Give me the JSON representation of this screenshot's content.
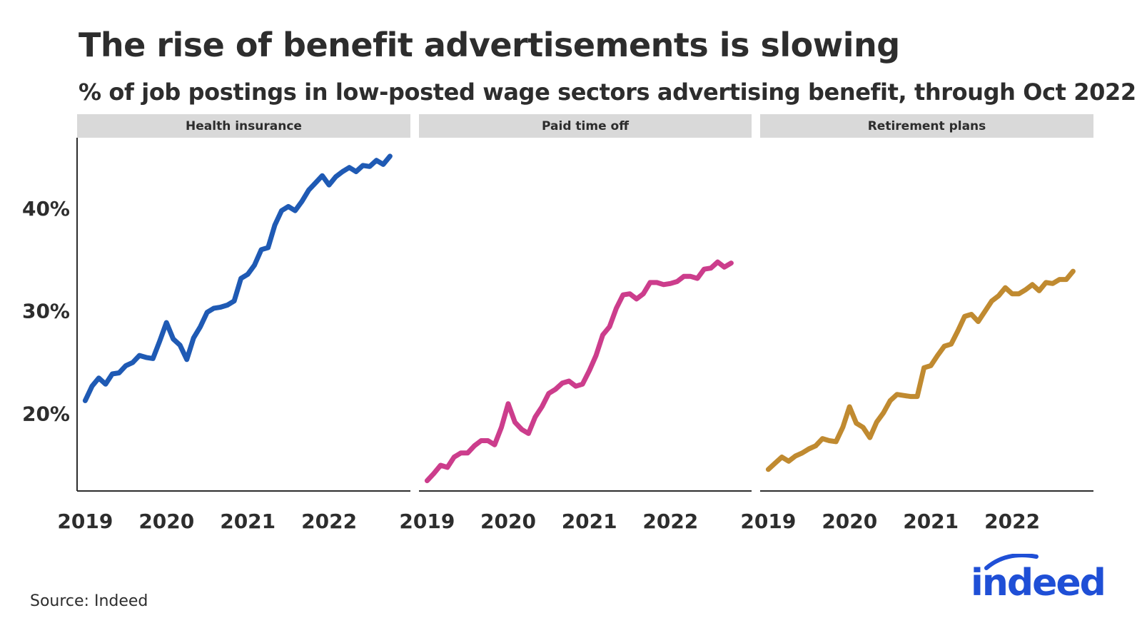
{
  "header": {
    "title": "The rise of benefit advertisements is slowing",
    "subtitle": "% of job postings in low-posted wage sectors advertising benefit, through Oct 2022"
  },
  "footer": {
    "source": "Source: Indeed",
    "brand": "indeed"
  },
  "colors": {
    "health": "#1f5ab4",
    "pto": "#cc3d8c",
    "retirement": "#c08a30",
    "strip": "#d9d9d9",
    "text": "#2d2d2d",
    "brand": "#1f4fd6"
  },
  "chart_data": {
    "type": "line",
    "title": "The rise of benefit advertisements is slowing",
    "subtitle": "% of job postings in low-posted wage sectors advertising benefit, through Oct 2022",
    "xlabel": "",
    "ylabel": "",
    "x_start": 2019.0,
    "x_step": 0.0833,
    "xlim": [
      2018.9,
      2023.0
    ],
    "ylim": [
      12.4,
      46.8
    ],
    "x_ticks": [
      2019,
      2020,
      2021,
      2022
    ],
    "x_tick_labels": [
      "2019",
      "2020",
      "2021",
      "2022"
    ],
    "y_ticks": [
      20,
      30,
      40
    ],
    "y_tick_labels": [
      "20%",
      "30%",
      "40%"
    ],
    "facets": [
      {
        "name": "Health insurance",
        "color": "#1f5ab4",
        "values": [
          21.2,
          22.6,
          23.4,
          22.8,
          23.8,
          23.9,
          24.6,
          24.9,
          25.6,
          25.4,
          25.3,
          27.0,
          28.8,
          27.2,
          26.6,
          25.2,
          27.3,
          28.4,
          29.8,
          30.2,
          30.3,
          30.5,
          30.9,
          33.1,
          33.5,
          34.4,
          35.9,
          36.1,
          38.3,
          39.7,
          40.1,
          39.7,
          40.6,
          41.7,
          42.4,
          43.1,
          42.2,
          43.0,
          43.5,
          43.9,
          43.5,
          44.1,
          44.0,
          44.6,
          44.2,
          45.0
        ]
      },
      {
        "name": "Paid time off",
        "color": "#cc3d8c",
        "values": [
          13.4,
          14.1,
          14.9,
          14.7,
          15.7,
          16.1,
          16.1,
          16.8,
          17.3,
          17.3,
          16.9,
          18.6,
          20.9,
          19.1,
          18.4,
          18.0,
          19.6,
          20.6,
          21.9,
          22.3,
          22.9,
          23.1,
          22.6,
          22.8,
          24.1,
          25.6,
          27.6,
          28.4,
          30.2,
          31.5,
          31.6,
          31.1,
          31.6,
          32.7,
          32.7,
          32.5,
          32.6,
          32.8,
          33.3,
          33.3,
          33.1,
          34.0,
          34.1,
          34.7,
          34.2,
          34.6
        ]
      },
      {
        "name": "Retirement plans",
        "color": "#c08a30",
        "values": [
          14.5,
          15.1,
          15.7,
          15.3,
          15.8,
          16.1,
          16.5,
          16.8,
          17.5,
          17.3,
          17.2,
          18.6,
          20.6,
          19.0,
          18.6,
          17.6,
          19.1,
          20.0,
          21.2,
          21.8,
          21.7,
          21.6,
          21.6,
          24.4,
          24.6,
          25.6,
          26.5,
          26.7,
          28.0,
          29.4,
          29.6,
          28.9,
          29.9,
          30.9,
          31.4,
          32.2,
          31.6,
          31.6,
          32.0,
          32.5,
          31.9,
          32.7,
          32.6,
          33.0,
          33.0,
          33.8
        ]
      }
    ]
  }
}
